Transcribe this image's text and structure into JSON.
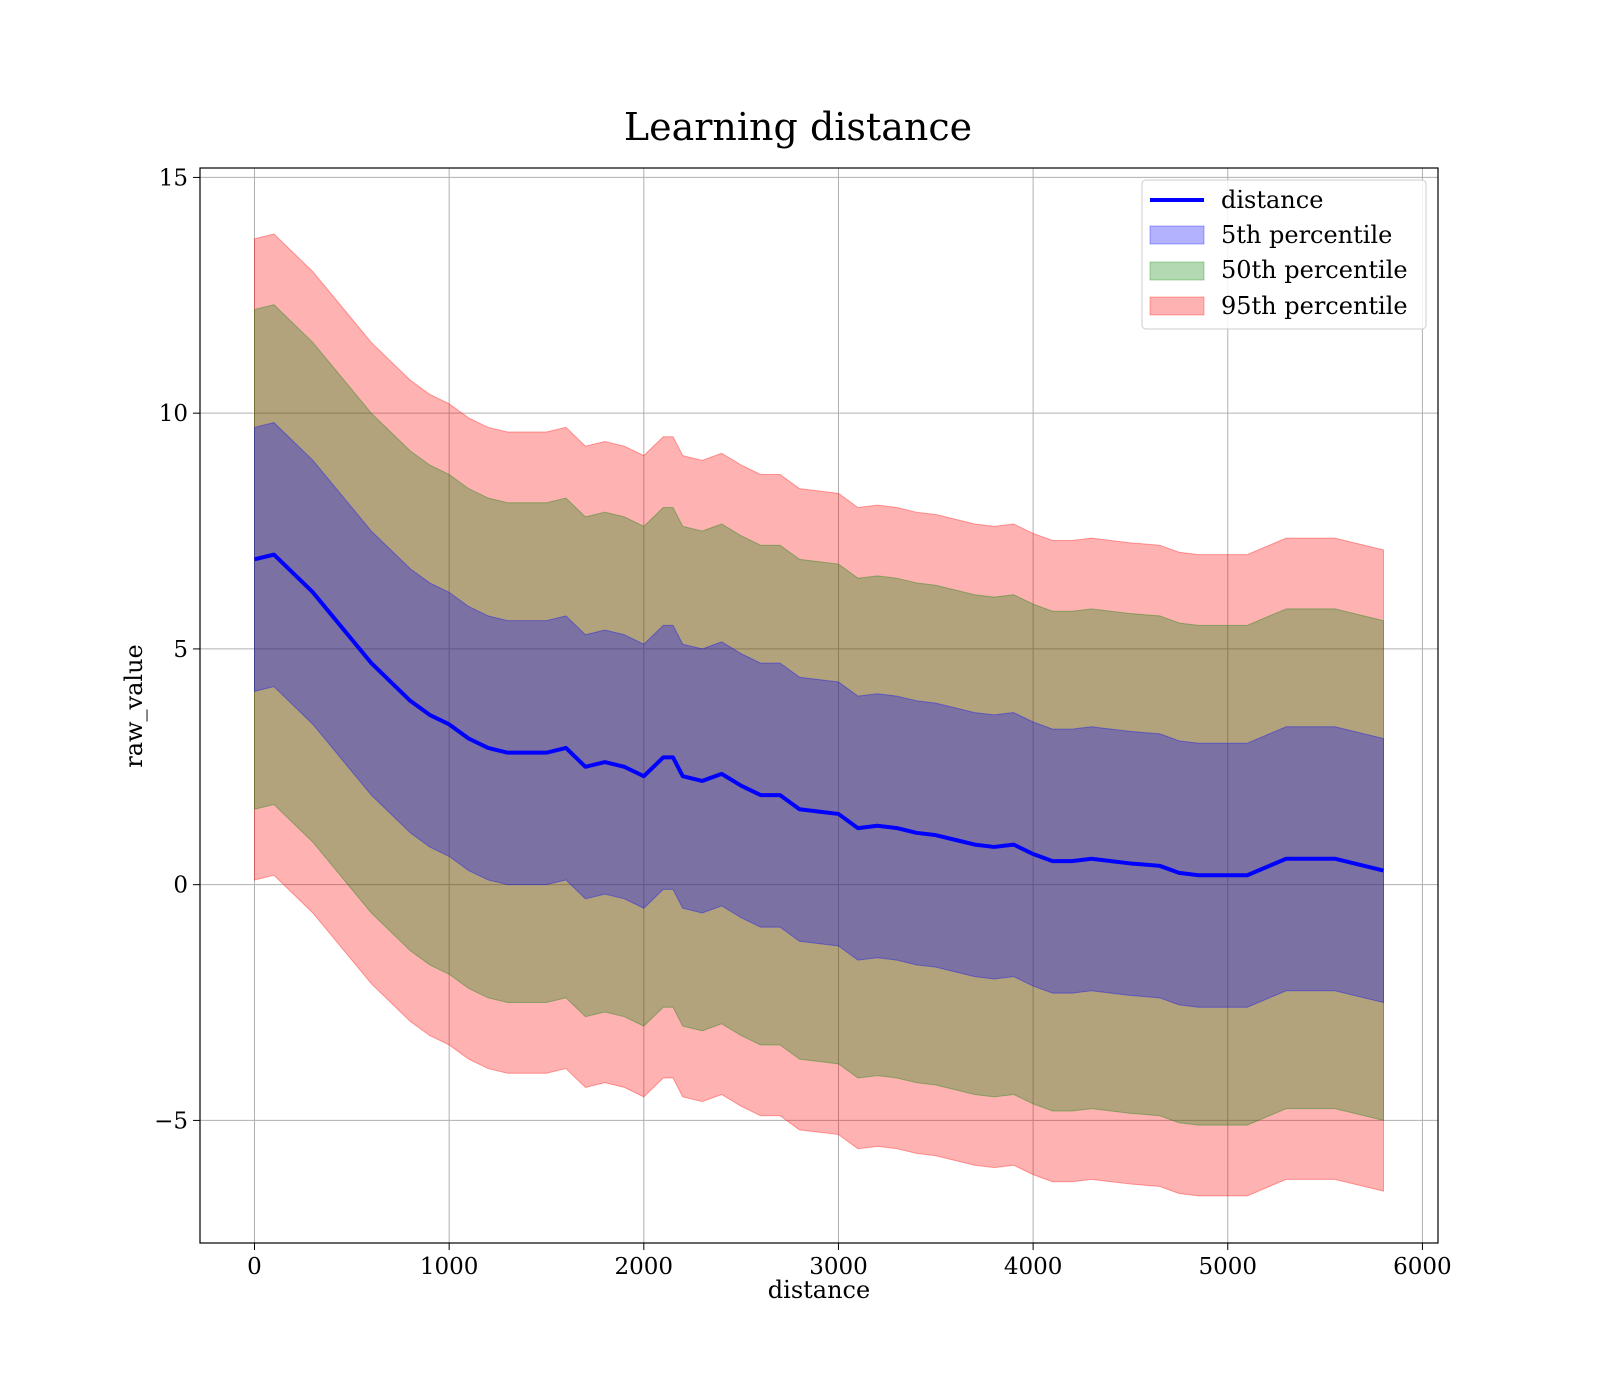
{
  "chart_data": {
    "type": "line",
    "title": "Learning distance",
    "xlabel": "distance",
    "ylabel": "raw_value",
    "xlim": [
      -280,
      6080
    ],
    "ylim": [
      -7.6,
      15.2
    ],
    "xticks": [
      0,
      1000,
      2000,
      3000,
      4000,
      5000,
      6000
    ],
    "xtick_labels": [
      "0",
      "1000",
      "2000",
      "3000",
      "4000",
      "5000",
      "6000"
    ],
    "yticks": [
      -5,
      0,
      5,
      10,
      15
    ],
    "ytick_labels": [
      "−5",
      "0",
      "5",
      "10",
      "15"
    ],
    "grid": true,
    "legend_position": "top-right",
    "colors": {
      "line": "#0000ff",
      "band_5th": "#0000ff",
      "band_50th": "#008000",
      "band_95th": "#ff0000"
    },
    "x": [
      0,
      100,
      200,
      300,
      400,
      500,
      600,
      700,
      800,
      900,
      1000,
      1100,
      1200,
      1300,
      1400,
      1500,
      1600,
      1700,
      1800,
      1900,
      2000,
      2100,
      2150,
      2200,
      2300,
      2400,
      2500,
      2600,
      2700,
      2800,
      2900,
      3000,
      3100,
      3200,
      3300,
      3400,
      3500,
      3600,
      3700,
      3800,
      3900,
      4000,
      4100,
      4200,
      4300,
      4400,
      4500,
      4650,
      4750,
      4850,
      5000,
      5100,
      5300,
      5550,
      5800
    ],
    "series": [
      {
        "name": "distance",
        "values": [
          6.9,
          7.0,
          6.6,
          6.2,
          5.7,
          5.2,
          4.7,
          4.3,
          3.9,
          3.6,
          3.4,
          3.1,
          2.9,
          2.8,
          2.8,
          2.8,
          2.9,
          2.5,
          2.6,
          2.5,
          2.3,
          2.7,
          2.7,
          2.3,
          2.2,
          2.35,
          2.1,
          1.9,
          1.9,
          1.6,
          1.55,
          1.5,
          1.2,
          1.25,
          1.2,
          1.1,
          1.05,
          0.95,
          0.85,
          0.8,
          0.85,
          0.65,
          0.5,
          0.5,
          0.55,
          0.5,
          0.45,
          0.4,
          0.25,
          0.2,
          0.2,
          0.2,
          0.55,
          0.55,
          0.3
        ]
      }
    ],
    "bands": [
      {
        "name": "5th percentile",
        "upper_offset": 2.8,
        "lower_offset": -2.8
      },
      {
        "name": "50th percentile",
        "upper_offset": 5.3,
        "lower_offset": -5.3
      },
      {
        "name": "95th percentile",
        "upper_offset": 6.8,
        "lower_offset": -6.8
      }
    ],
    "legend": [
      "distance",
      "5th percentile",
      "50th percentile",
      "95th percentile"
    ]
  }
}
